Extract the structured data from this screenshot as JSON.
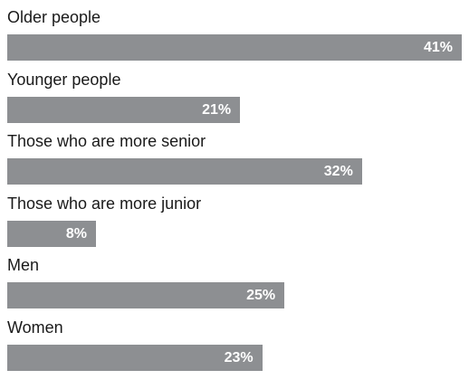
{
  "chart_data": {
    "type": "bar",
    "orientation": "horizontal",
    "categories": [
      "Older people",
      "Younger people",
      "Those who are more senior",
      "Those who are more junior",
      "Men",
      "Women"
    ],
    "values": [
      41,
      21,
      32,
      8,
      25,
      23
    ],
    "value_labels": [
      "41%",
      "21%",
      "32%",
      "8%",
      "25%",
      "23%"
    ],
    "unit": "%",
    "xlim": [
      0,
      41
    ],
    "grid": false,
    "bar_color": "#8d8f92",
    "label_color": "#ffffff"
  }
}
